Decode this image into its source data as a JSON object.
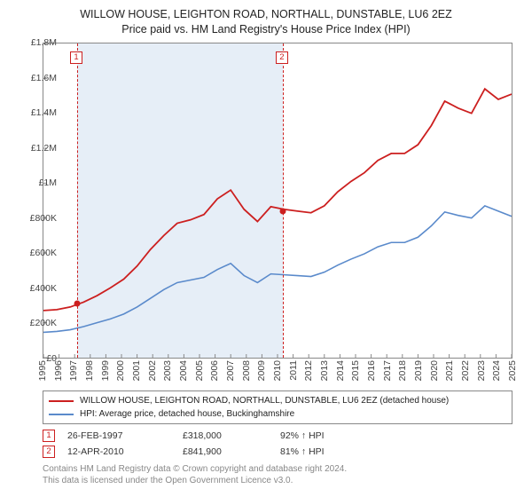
{
  "title": "WILLOW HOUSE, LEIGHTON ROAD, NORTHALL, DUNSTABLE, LU6 2EZ",
  "subtitle": "Price paid vs. HM Land Registry's House Price Index (HPI)",
  "chart": {
    "type": "line",
    "x_start_year": 1995,
    "x_end_year": 2025,
    "y_min": 0,
    "y_max": 1800000,
    "y_step": 200000,
    "y_labels": [
      "£0",
      "£200K",
      "£400K",
      "£600K",
      "£800K",
      "£1M",
      "£1.2M",
      "£1.4M",
      "£1.6M",
      "£1.8M"
    ],
    "x_years": [
      1995,
      1996,
      1997,
      1998,
      1999,
      2000,
      2001,
      2002,
      2003,
      2004,
      2005,
      2006,
      2007,
      2008,
      2009,
      2010,
      2011,
      2012,
      2013,
      2014,
      2015,
      2016,
      2017,
      2018,
      2019,
      2020,
      2021,
      2022,
      2023,
      2024,
      2025
    ],
    "shade_start_year": 1997.15,
    "shade_end_year": 2010.28,
    "colors": {
      "series1": "#cc1f1f",
      "series2": "#5a8acb",
      "marker_border": "#cc1f1f",
      "grid_border": "#888888",
      "shade": "#e6eef7",
      "tick_text": "#444444",
      "footer": "#888888"
    },
    "series1": {
      "label": "WILLOW HOUSE, LEIGHTON ROAD, NORTHALL, DUNSTABLE, LU6 2EZ (detached house)",
      "values": [
        270000,
        275000,
        290000,
        318000,
        355000,
        400000,
        450000,
        525000,
        620000,
        700000,
        770000,
        790000,
        820000,
        910000,
        960000,
        850000,
        780000,
        865000,
        850000,
        840000,
        830000,
        870000,
        950000,
        1010000,
        1060000,
        1130000,
        1170000,
        1170000,
        1220000,
        1330000,
        1470000,
        1430000,
        1400000,
        1540000,
        1480000,
        1510000
      ]
    },
    "series2": {
      "label": "HPI: Average price, detached house, Buckinghamshire",
      "values": [
        145000,
        150000,
        160000,
        178000,
        200000,
        222000,
        250000,
        290000,
        340000,
        390000,
        430000,
        445000,
        460000,
        505000,
        540000,
        470000,
        430000,
        480000,
        475000,
        470000,
        465000,
        490000,
        530000,
        565000,
        595000,
        635000,
        660000,
        660000,
        690000,
        755000,
        835000,
        815000,
        800000,
        870000,
        840000,
        810000
      ]
    }
  },
  "markers": [
    {
      "n": "1",
      "year": 1997.15,
      "date": "26-FEB-1997",
      "price": "£318,000",
      "hpi": "92% ↑ HPI",
      "value": 318000
    },
    {
      "n": "2",
      "year": 2010.28,
      "date": "12-APR-2010",
      "price": "£841,900",
      "hpi": "81% ↑ HPI",
      "value": 841900
    }
  ],
  "footer_line1": "Contains HM Land Registry data © Crown copyright and database right 2024.",
  "footer_line2": "This data is licensed under the Open Government Licence v3.0."
}
